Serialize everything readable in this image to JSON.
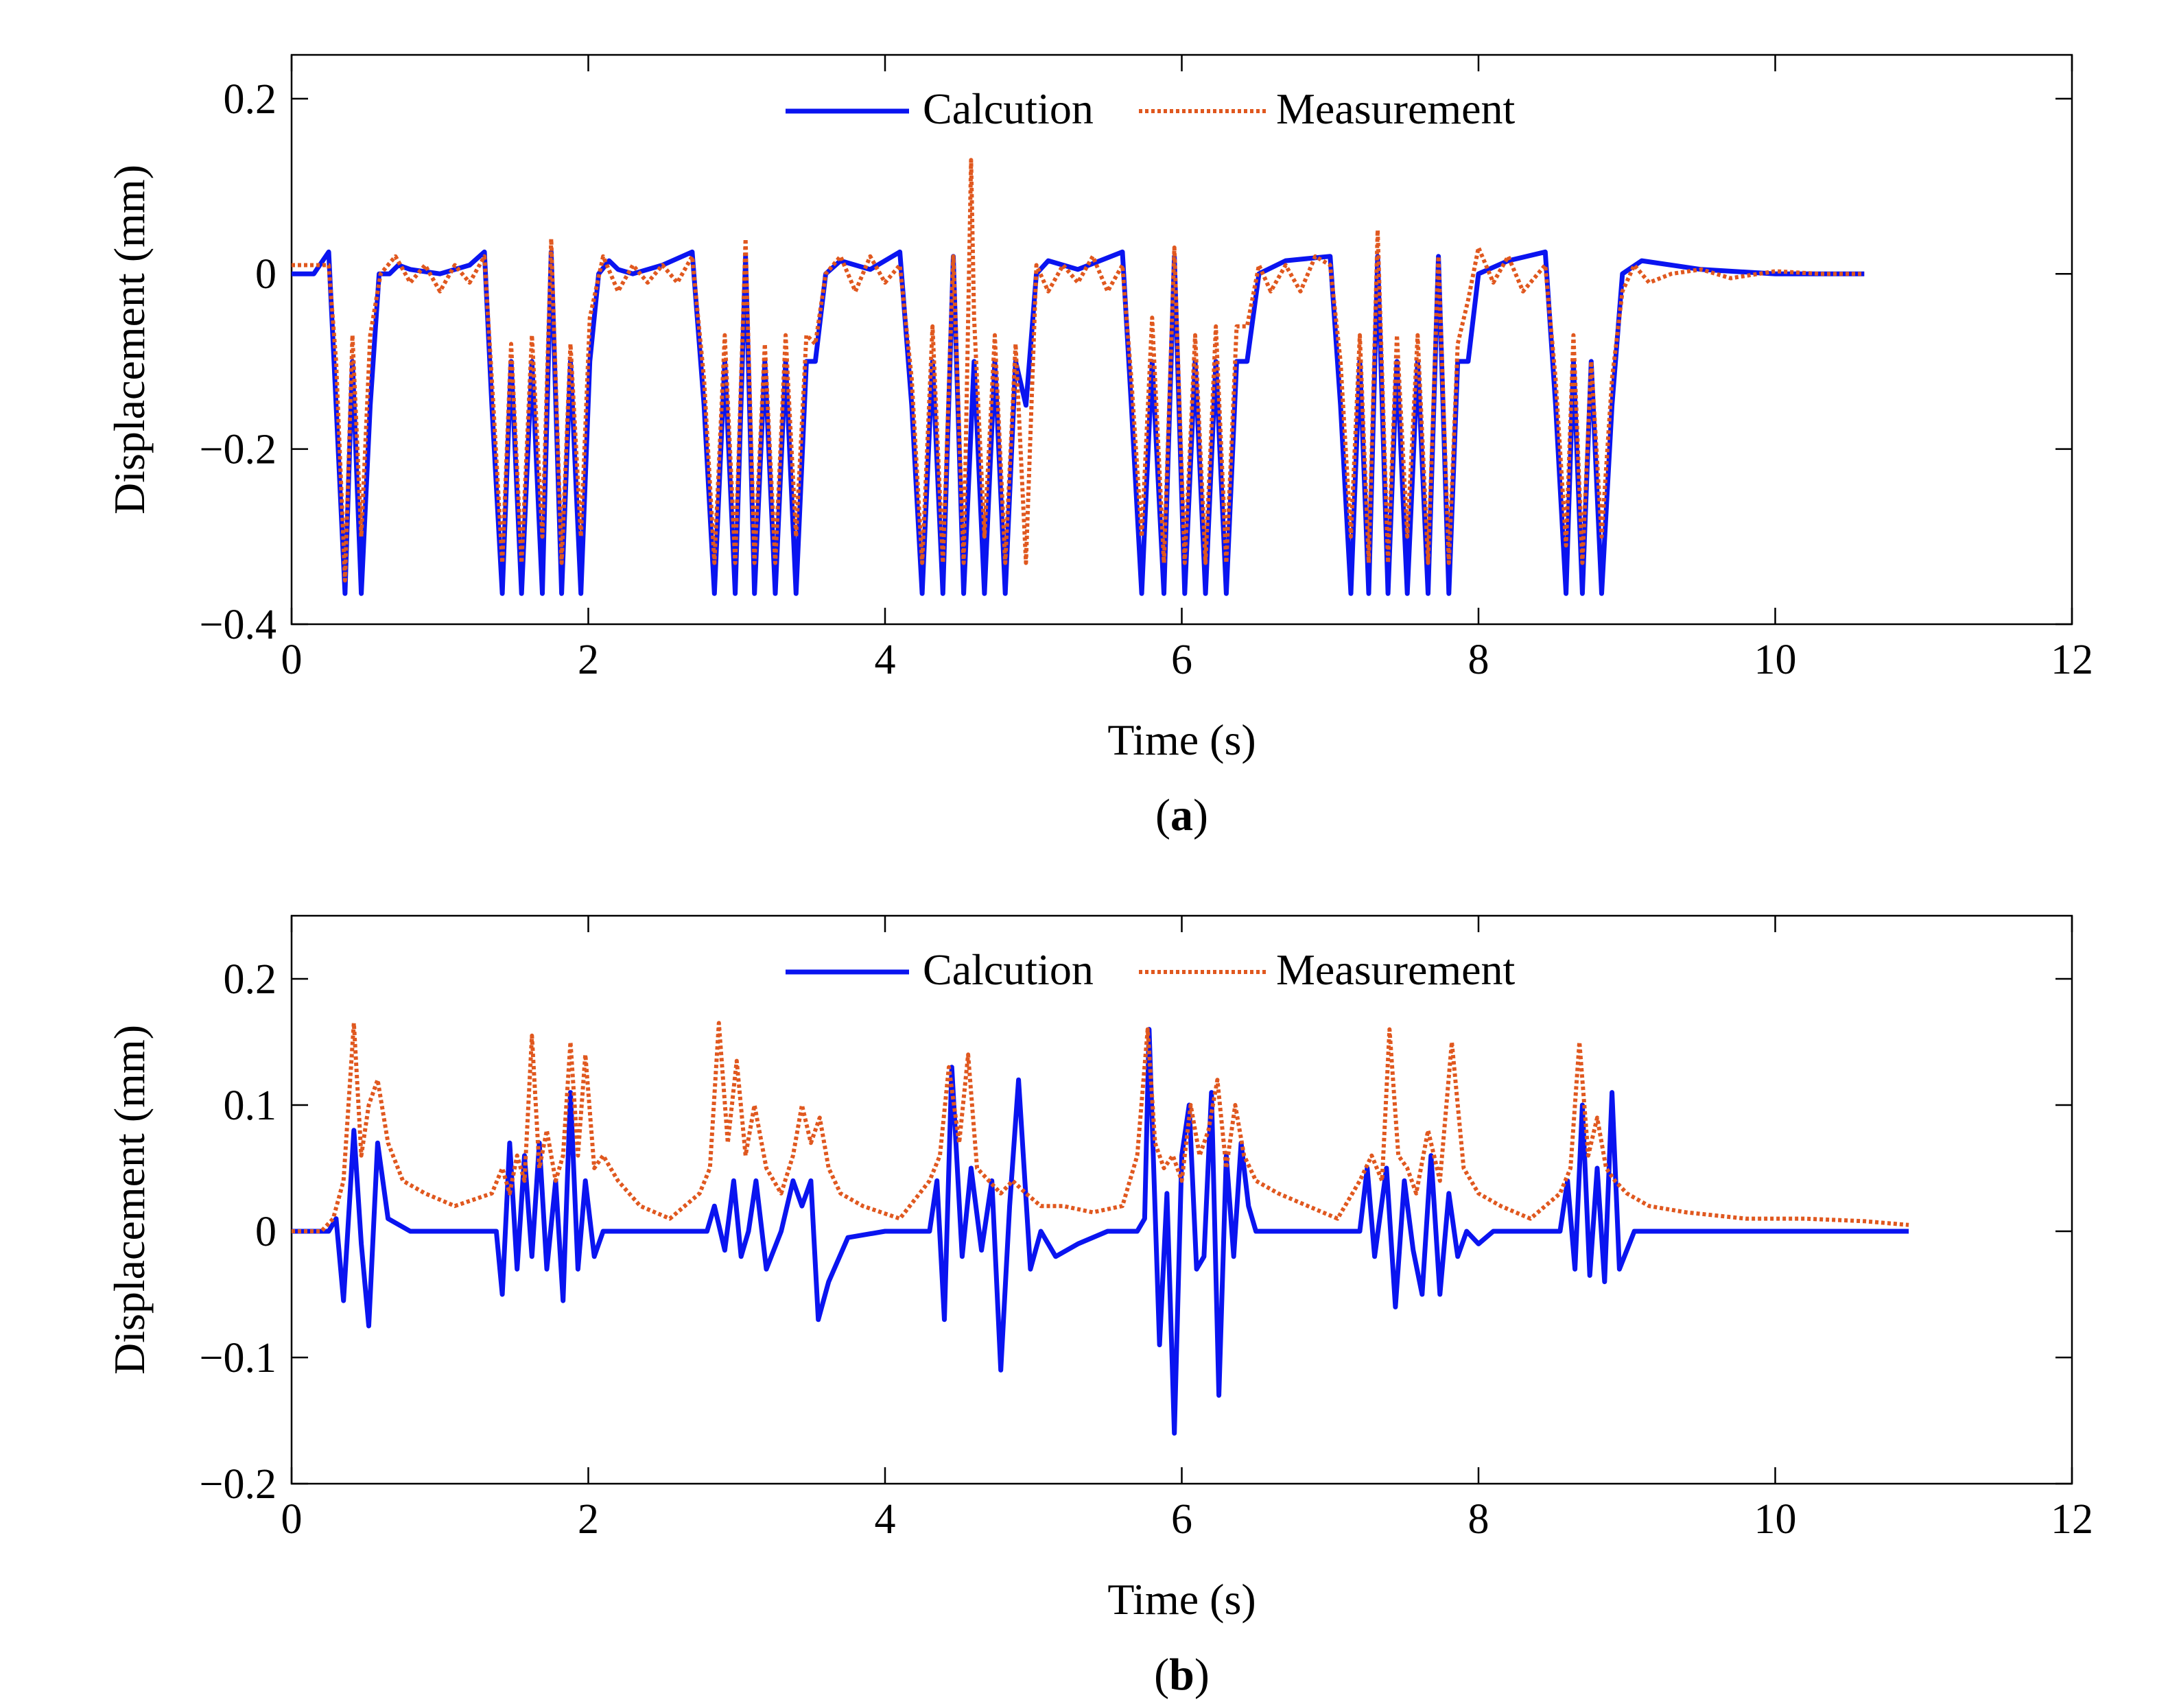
{
  "figure": {
    "colors": {
      "calculation": "#0a14f0",
      "measurement": "#e0581f",
      "axes": "#000000",
      "background": "#ffffff"
    }
  },
  "chart_data": [
    {
      "type": "line",
      "panel": "a",
      "caption_open": "(",
      "caption_letter": "a",
      "caption_close": ")",
      "xlabel": "Time (s)",
      "ylabel": "Displacement (mm)",
      "xlim": [
        0,
        12
      ],
      "ylim": [
        -0.4,
        0.25
      ],
      "xticks": [
        0,
        2,
        4,
        6,
        8,
        10,
        12
      ],
      "xtick_labels": [
        "0",
        "2",
        "4",
        "6",
        "8",
        "10",
        "12"
      ],
      "yticks": [
        -0.4,
        -0.2,
        0,
        0.2
      ],
      "ytick_labels": [
        "−0.4",
        "−0.2",
        "0",
        "0.2"
      ],
      "legend": {
        "position": "top-center",
        "entries": [
          "Calcution",
          "Measurement"
        ]
      },
      "series": [
        {
          "name": "Calcution",
          "style": "solid",
          "x": [
            0,
            0.15,
            0.25,
            0.3,
            0.36,
            0.41,
            0.47,
            0.53,
            0.59,
            0.66,
            0.72,
            0.8,
            1.0,
            1.2,
            1.3,
            1.35,
            1.42,
            1.48,
            1.55,
            1.62,
            1.69,
            1.75,
            1.82,
            1.88,
            1.95,
            2.01,
            2.07,
            2.14,
            2.2,
            2.3,
            2.5,
            2.7,
            2.78,
            2.85,
            2.92,
            2.99,
            3.06,
            3.12,
            3.19,
            3.26,
            3.33,
            3.4,
            3.47,
            3.53,
            3.6,
            3.7,
            3.9,
            4.1,
            4.18,
            4.25,
            4.32,
            4.39,
            4.46,
            4.53,
            4.6,
            4.67,
            4.74,
            4.81,
            4.88,
            4.95,
            5.02,
            5.1,
            5.3,
            5.6,
            5.66,
            5.73,
            5.8,
            5.88,
            5.95,
            6.02,
            6.09,
            6.16,
            6.23,
            6.3,
            6.37,
            6.44,
            6.52,
            6.7,
            7.0,
            7.07,
            7.14,
            7.2,
            7.26,
            7.32,
            7.39,
            7.45,
            7.52,
            7.59,
            7.66,
            7.73,
            7.8,
            7.86,
            7.93,
            8.0,
            8.2,
            8.45,
            8.52,
            8.59,
            8.64,
            8.7,
            8.76,
            8.83,
            8.9,
            8.97,
            9.1,
            9.5,
            10.0,
            10.6
          ],
          "y": [
            0.0,
            0.0,
            0.025,
            -0.15,
            -0.365,
            -0.1,
            -0.365,
            -0.15,
            0.0,
            0.0,
            0.01,
            0.005,
            0.0,
            0.01,
            0.025,
            -0.15,
            -0.365,
            -0.1,
            -0.365,
            -0.1,
            -0.365,
            0.025,
            -0.365,
            -0.1,
            -0.365,
            -0.1,
            0.0,
            0.015,
            0.005,
            0.0,
            0.01,
            0.025,
            -0.15,
            -0.365,
            -0.1,
            -0.365,
            0.02,
            -0.365,
            -0.1,
            -0.365,
            -0.1,
            -0.365,
            -0.1,
            -0.1,
            0.0,
            0.015,
            0.005,
            0.025,
            -0.15,
            -0.365,
            -0.1,
            -0.365,
            0.02,
            -0.365,
            -0.1,
            -0.365,
            -0.1,
            -0.365,
            -0.1,
            -0.15,
            0.0,
            0.015,
            0.005,
            0.025,
            -0.15,
            -0.365,
            -0.1,
            -0.365,
            0.02,
            -0.365,
            -0.1,
            -0.365,
            -0.1,
            -0.365,
            -0.1,
            -0.1,
            0.0,
            0.015,
            0.02,
            -0.15,
            -0.365,
            -0.1,
            -0.365,
            0.02,
            -0.365,
            -0.1,
            -0.365,
            -0.1,
            -0.365,
            0.02,
            -0.365,
            -0.1,
            -0.1,
            0.0,
            0.015,
            0.025,
            -0.15,
            -0.365,
            -0.1,
            -0.365,
            -0.1,
            -0.365,
            -0.15,
            0.0,
            0.015,
            0.005,
            0.0,
            0.0
          ]
        },
        {
          "name": "Measurement",
          "style": "dotted",
          "x": [
            0,
            0.15,
            0.25,
            0.3,
            0.36,
            0.41,
            0.47,
            0.53,
            0.6,
            0.7,
            0.8,
            0.9,
            1.0,
            1.1,
            1.2,
            1.3,
            1.36,
            1.42,
            1.48,
            1.55,
            1.62,
            1.69,
            1.75,
            1.82,
            1.88,
            1.95,
            2.01,
            2.1,
            2.2,
            2.3,
            2.4,
            2.5,
            2.6,
            2.7,
            2.78,
            2.85,
            2.92,
            2.99,
            3.06,
            3.12,
            3.19,
            3.26,
            3.33,
            3.4,
            3.47,
            3.53,
            3.6,
            3.7,
            3.8,
            3.9,
            4.0,
            4.1,
            4.18,
            4.25,
            4.32,
            4.39,
            4.46,
            4.53,
            4.58,
            4.6,
            4.67,
            4.74,
            4.81,
            4.88,
            4.95,
            5.02,
            5.1,
            5.2,
            5.3,
            5.4,
            5.5,
            5.6,
            5.66,
            5.73,
            5.8,
            5.88,
            5.95,
            6.02,
            6.09,
            6.16,
            6.23,
            6.3,
            6.37,
            6.44,
            6.52,
            6.6,
            6.7,
            6.8,
            6.9,
            7.0,
            7.07,
            7.14,
            7.2,
            7.26,
            7.32,
            7.39,
            7.45,
            7.52,
            7.59,
            7.66,
            7.73,
            7.8,
            7.86,
            7.93,
            8.0,
            8.1,
            8.2,
            8.3,
            8.45,
            8.52,
            8.59,
            8.64,
            8.7,
            8.76,
            8.83,
            8.9,
            8.97,
            9.05,
            9.15,
            9.3,
            9.5,
            9.7,
            10.0,
            10.3,
            10.6
          ],
          "y": [
            0.01,
            0.01,
            0.01,
            -0.1,
            -0.35,
            -0.07,
            -0.3,
            -0.07,
            0.0,
            0.02,
            -0.01,
            0.01,
            -0.02,
            0.01,
            -0.01,
            0.02,
            -0.15,
            -0.33,
            -0.08,
            -0.33,
            -0.07,
            -0.3,
            0.04,
            -0.33,
            -0.08,
            -0.3,
            -0.05,
            0.02,
            -0.02,
            0.01,
            -0.01,
            0.01,
            -0.01,
            0.02,
            -0.12,
            -0.33,
            -0.07,
            -0.33,
            0.04,
            -0.33,
            -0.08,
            -0.33,
            -0.07,
            -0.3,
            -0.07,
            -0.08,
            0.0,
            0.02,
            -0.02,
            0.02,
            -0.01,
            0.01,
            -0.12,
            -0.33,
            -0.06,
            -0.33,
            0.02,
            -0.33,
            0.13,
            -0.05,
            -0.3,
            -0.07,
            -0.33,
            -0.08,
            -0.33,
            0.01,
            -0.02,
            0.01,
            -0.01,
            0.02,
            -0.02,
            0.01,
            -0.12,
            -0.3,
            -0.05,
            -0.33,
            0.03,
            -0.33,
            -0.07,
            -0.33,
            -0.06,
            -0.33,
            -0.06,
            -0.06,
            0.01,
            -0.02,
            0.01,
            -0.02,
            0.02,
            0.01,
            -0.1,
            -0.3,
            -0.07,
            -0.33,
            0.05,
            -0.33,
            -0.07,
            -0.3,
            -0.07,
            -0.33,
            0.02,
            -0.33,
            -0.08,
            -0.03,
            0.03,
            -0.01,
            0.02,
            -0.02,
            0.01,
            -0.12,
            -0.31,
            -0.07,
            -0.33,
            -0.1,
            -0.3,
            -0.12,
            -0.02,
            0.01,
            -0.01,
            0.0,
            0.005,
            -0.005,
            0.003,
            0.0,
            0.0
          ]
        }
      ]
    },
    {
      "type": "line",
      "panel": "b",
      "caption_open": "(",
      "caption_letter": "b",
      "caption_close": ")",
      "xlabel": "Time (s)",
      "ylabel": "Displacement (mm)",
      "xlim": [
        0,
        12
      ],
      "ylim": [
        -0.2,
        0.25
      ],
      "xticks": [
        0,
        2,
        4,
        6,
        8,
        10,
        12
      ],
      "xtick_labels": [
        "0",
        "2",
        "4",
        "6",
        "8",
        "10",
        "12"
      ],
      "yticks": [
        -0.2,
        -0.1,
        0,
        0.1,
        0.2
      ],
      "ytick_labels": [
        "−0.2",
        "−0.1",
        "0",
        "0.1",
        "0.2"
      ],
      "legend": {
        "position": "top-center",
        "entries": [
          "Calcution",
          "Measurement"
        ]
      },
      "series": [
        {
          "name": "Calcution",
          "style": "solid",
          "x": [
            0,
            0.25,
            0.3,
            0.35,
            0.42,
            0.47,
            0.52,
            0.58,
            0.65,
            0.8,
            1.3,
            1.38,
            1.42,
            1.47,
            1.52,
            1.57,
            1.62,
            1.67,
            1.72,
            1.78,
            1.83,
            1.88,
            1.93,
            1.98,
            2.04,
            2.1,
            2.2,
            2.4,
            2.8,
            2.85,
            2.92,
            2.98,
            3.03,
            3.08,
            3.13,
            3.2,
            3.3,
            3.38,
            3.44,
            3.5,
            3.55,
            3.62,
            3.75,
            4.0,
            4.3,
            4.35,
            4.4,
            4.45,
            4.52,
            4.58,
            4.65,
            4.72,
            4.78,
            4.84,
            4.9,
            4.98,
            5.05,
            5.15,
            5.3,
            5.5,
            5.7,
            5.75,
            5.78,
            5.85,
            5.9,
            5.95,
            6.0,
            6.05,
            6.1,
            6.15,
            6.2,
            6.25,
            6.3,
            6.35,
            6.4,
            6.45,
            6.5,
            6.6,
            6.8,
            7.0,
            7.2,
            7.25,
            7.3,
            7.38,
            7.44,
            7.5,
            7.56,
            7.62,
            7.68,
            7.74,
            7.8,
            7.86,
            7.92,
            8.0,
            8.1,
            8.3,
            8.55,
            8.6,
            8.65,
            8.7,
            8.75,
            8.8,
            8.85,
            8.9,
            8.95,
            9.05,
            9.2,
            9.6,
            10.0,
            10.9
          ],
          "y": [
            0.0,
            0.0,
            0.01,
            -0.055,
            0.08,
            -0.01,
            -0.075,
            0.07,
            0.01,
            0.0,
            0.0,
            0.0,
            -0.05,
            0.07,
            -0.03,
            0.06,
            -0.02,
            0.07,
            -0.03,
            0.04,
            -0.055,
            0.11,
            -0.03,
            0.04,
            -0.02,
            0.0,
            0.0,
            0.0,
            0.0,
            0.02,
            -0.015,
            0.04,
            -0.02,
            0.0,
            0.04,
            -0.03,
            0.0,
            0.04,
            0.02,
            0.04,
            -0.07,
            -0.04,
            -0.005,
            0.0,
            0.0,
            0.04,
            -0.07,
            0.13,
            -0.02,
            0.05,
            -0.015,
            0.04,
            -0.11,
            0.02,
            0.12,
            -0.03,
            0.0,
            -0.02,
            -0.01,
            0.0,
            0.0,
            0.01,
            0.16,
            -0.09,
            0.03,
            -0.16,
            0.06,
            0.1,
            -0.03,
            -0.02,
            0.11,
            -0.13,
            0.06,
            -0.02,
            0.07,
            0.02,
            0.0,
            0.0,
            0.0,
            0.0,
            0.0,
            0.05,
            -0.02,
            0.05,
            -0.06,
            0.04,
            -0.015,
            -0.05,
            0.06,
            -0.05,
            0.03,
            -0.02,
            0.0,
            -0.01,
            0.0,
            0.0,
            0.0,
            0.04,
            -0.03,
            0.1,
            -0.035,
            0.05,
            -0.04,
            0.11,
            -0.03,
            0.0,
            0.0,
            0.0,
            0.0,
            0.0
          ]
        },
        {
          "name": "Measurement",
          "style": "dotted",
          "x": [
            0,
            0.2,
            0.28,
            0.35,
            0.42,
            0.47,
            0.52,
            0.58,
            0.65,
            0.75,
            0.9,
            1.1,
            1.35,
            1.42,
            1.47,
            1.52,
            1.57,
            1.62,
            1.67,
            1.72,
            1.78,
            1.83,
            1.88,
            1.93,
            1.98,
            2.04,
            2.1,
            2.2,
            2.35,
            2.55,
            2.75,
            2.82,
            2.88,
            2.94,
            3.0,
            3.06,
            3.12,
            3.2,
            3.3,
            3.38,
            3.44,
            3.5,
            3.56,
            3.62,
            3.7,
            3.85,
            4.1,
            4.3,
            4.37,
            4.43,
            4.5,
            4.56,
            4.62,
            4.7,
            4.78,
            4.86,
            4.95,
            5.05,
            5.2,
            5.4,
            5.6,
            5.7,
            5.77,
            5.82,
            5.88,
            5.94,
            6.0,
            6.06,
            6.12,
            6.18,
            6.24,
            6.3,
            6.36,
            6.42,
            6.5,
            6.65,
            6.85,
            7.05,
            7.2,
            7.28,
            7.35,
            7.4,
            7.46,
            7.52,
            7.58,
            7.66,
            7.74,
            7.82,
            7.9,
            8.0,
            8.15,
            8.35,
            8.55,
            8.62,
            8.68,
            8.74,
            8.8,
            8.86,
            8.92,
            9.0,
            9.15,
            9.4,
            9.8,
            10.2,
            10.6,
            10.9
          ],
          "y": [
            0.0,
            0.0,
            0.01,
            0.04,
            0.165,
            0.06,
            0.1,
            0.12,
            0.07,
            0.04,
            0.03,
            0.02,
            0.03,
            0.05,
            0.03,
            0.06,
            0.04,
            0.155,
            0.05,
            0.08,
            0.04,
            0.06,
            0.15,
            0.06,
            0.14,
            0.05,
            0.06,
            0.04,
            0.02,
            0.01,
            0.03,
            0.05,
            0.165,
            0.07,
            0.135,
            0.06,
            0.1,
            0.05,
            0.03,
            0.06,
            0.1,
            0.07,
            0.09,
            0.05,
            0.03,
            0.02,
            0.01,
            0.04,
            0.06,
            0.13,
            0.07,
            0.14,
            0.05,
            0.04,
            0.03,
            0.04,
            0.03,
            0.02,
            0.02,
            0.015,
            0.02,
            0.06,
            0.16,
            0.07,
            0.05,
            0.06,
            0.04,
            0.1,
            0.06,
            0.08,
            0.12,
            0.05,
            0.1,
            0.06,
            0.04,
            0.03,
            0.02,
            0.01,
            0.04,
            0.06,
            0.04,
            0.16,
            0.06,
            0.05,
            0.03,
            0.08,
            0.04,
            0.15,
            0.05,
            0.03,
            0.02,
            0.01,
            0.03,
            0.05,
            0.15,
            0.06,
            0.09,
            0.05,
            0.04,
            0.03,
            0.02,
            0.015,
            0.01,
            0.01,
            0.008,
            0.005
          ]
        }
      ]
    }
  ]
}
